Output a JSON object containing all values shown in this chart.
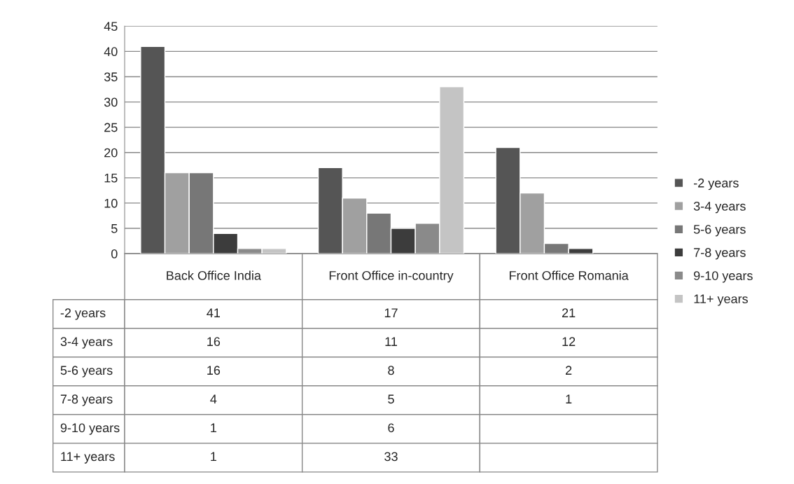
{
  "chart_data": {
    "type": "bar",
    "categories": [
      "Back Office India",
      "Front Office in-country",
      "Front Office Romania"
    ],
    "series": [
      {
        "name": "-2 years",
        "color": "#555555",
        "values": [
          41,
          17,
          21
        ]
      },
      {
        "name": "3-4 years",
        "color": "#a0a0a0",
        "values": [
          16,
          11,
          12
        ]
      },
      {
        "name": "5-6 years",
        "color": "#777777",
        "values": [
          16,
          8,
          2
        ]
      },
      {
        "name": "7-8 years",
        "color": "#3c3c3c",
        "values": [
          4,
          5,
          1
        ]
      },
      {
        "name": "9-10 years",
        "color": "#8a8a8a",
        "values": [
          1,
          6,
          null
        ]
      },
      {
        "name": "11+ years",
        "color": "#c4c4c4",
        "values": [
          1,
          33,
          null
        ]
      }
    ],
    "ylim": [
      0,
      45
    ],
    "yticks": [
      0,
      5,
      10,
      15,
      20,
      25,
      30,
      35,
      40,
      45
    ],
    "grid": "y",
    "legend": "right",
    "data_labels": true
  }
}
